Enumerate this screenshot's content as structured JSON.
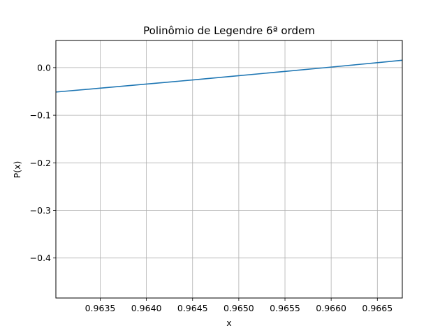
{
  "chart_data": {
    "type": "line",
    "title": "Polinômio de Legendre 6ª ordem",
    "xlabel": "x",
    "ylabel": "P(x)",
    "xlim": [
      0.96302,
      0.96677
    ],
    "ylim": [
      -0.484,
      0.057
    ],
    "xticks": [
      0.9635,
      0.964,
      0.9645,
      0.965,
      0.9655,
      0.966,
      0.9665
    ],
    "xtick_labels": [
      "0.9635",
      "0.9640",
      "0.9645",
      "0.9650",
      "0.9655",
      "0.9660",
      "0.9665"
    ],
    "yticks": [
      0.0,
      -0.1,
      -0.2,
      -0.3,
      -0.4
    ],
    "ytick_labels": [
      "0.0",
      "−0.1",
      "−0.2",
      "−0.3",
      "−0.4"
    ],
    "grid": true,
    "series": [
      {
        "color": "#1f77b4",
        "x": [
          0.96302,
          0.9635,
          0.964,
          0.9645,
          0.965,
          0.9655,
          0.966,
          0.9665,
          0.96677
        ],
        "y": [
          -0.0513,
          -0.0432,
          -0.0346,
          -0.0259,
          -0.017,
          -0.008,
          0.0011,
          0.0104,
          0.0155
        ]
      }
    ]
  }
}
